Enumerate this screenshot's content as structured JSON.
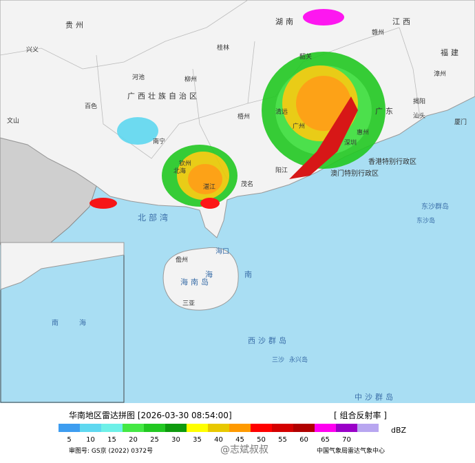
{
  "map": {
    "labels": [
      "贵州",
      "湖南",
      "江西",
      "福建",
      "广西壮族自治区",
      "广东",
      "香港特别行政区",
      "澳门特别行政区",
      "北部湾",
      "海口",
      "海南岛",
      "南",
      "海",
      "西沙群岛",
      "中沙群岛",
      "东沙群岛",
      "东沙岛",
      "三沙",
      "永兴岛",
      "南宁",
      "广州",
      "湛江",
      "北海",
      "柳州",
      "桂林",
      "梧州",
      "韶关",
      "赣州",
      "漳州",
      "汕头",
      "茂名",
      "三亚",
      "儋州",
      "百色",
      "河池",
      "钦州",
      "惠州",
      "深圳",
      "厦门",
      "文山",
      "兴义",
      "清远",
      "阳江",
      "揭阳"
    ],
    "inset_labels": [
      "南",
      "海"
    ]
  },
  "footer": {
    "title": "华南地区雷达拼图 [2026-03-30 08:54:00]",
    "product": "[ 组合反射率 ]",
    "unit": "dBZ",
    "review_no": "审图号: GS京 (2022) 0372号",
    "agency": "中国气象局雷达气象中心",
    "watermark": "@志斌叔叔"
  },
  "legend": {
    "ticks": [
      5,
      10,
      15,
      20,
      25,
      30,
      35,
      40,
      45,
      50,
      55,
      60,
      65,
      70
    ],
    "colors": [
      "#3d9df0",
      "#5fd8f0",
      "#6ef0e8",
      "#44e844",
      "#22c822",
      "#0e9a0e",
      "#ffff00",
      "#e8c800",
      "#ff9a00",
      "#ff0000",
      "#d40000",
      "#b00000",
      "#ff00f0",
      "#9a00c8",
      "#b8a6f0"
    ]
  }
}
